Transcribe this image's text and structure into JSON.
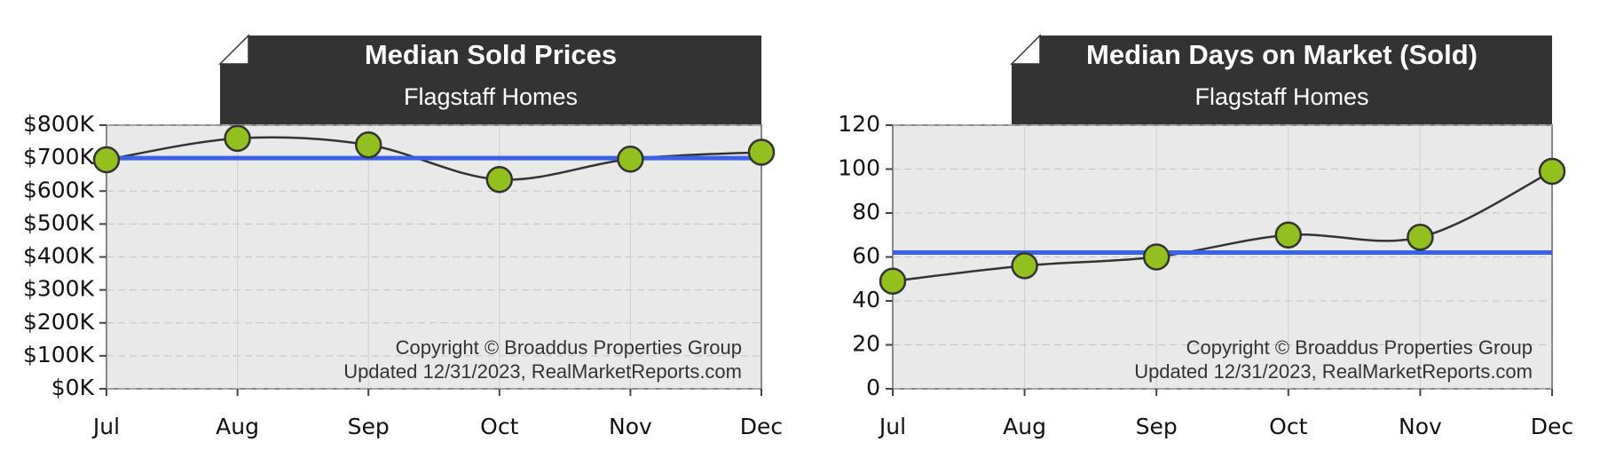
{
  "chart_data": [
    {
      "type": "line",
      "title": "Median Sold Prices",
      "subtitle": "Flagstaff Homes",
      "categories": [
        "Jul",
        "Aug",
        "Sep",
        "Oct",
        "Nov",
        "Dec"
      ],
      "values": [
        695000,
        760000,
        740000,
        635000,
        697000,
        718000
      ],
      "color": "#333333",
      "marker_color": "#92c01f",
      "average": 700000,
      "average_color": "#3a62e8",
      "ylim": [
        0,
        800000
      ],
      "yticks": [
        {
          "value": 0,
          "label": "$0K"
        },
        {
          "value": 100000,
          "label": "$100K"
        },
        {
          "value": 200000,
          "label": "$200K"
        },
        {
          "value": 300000,
          "label": "$300K"
        },
        {
          "value": 400000,
          "label": "$400K"
        },
        {
          "value": 500000,
          "label": "$500K"
        },
        {
          "value": 600000,
          "label": "$600K"
        },
        {
          "value": 700000,
          "label": "$700K"
        },
        {
          "value": 800000,
          "label": "$800K"
        }
      ],
      "grid": true,
      "annotations": [
        "Copyright © Broaddus Properties Group",
        "Updated 12/31/2023, RealMarketReports.com"
      ]
    },
    {
      "type": "line",
      "title": "Median Days on Market (Sold)",
      "subtitle": "Flagstaff Homes",
      "categories": [
        "Jul",
        "Aug",
        "Sep",
        "Oct",
        "Nov",
        "Dec"
      ],
      "values": [
        49,
        56,
        60,
        70,
        69,
        99
      ],
      "color": "#333333",
      "marker_color": "#92c01f",
      "average": 62,
      "average_color": "#3a62e8",
      "ylim": [
        0,
        120
      ],
      "yticks": [
        0,
        20,
        40,
        60,
        80,
        100,
        120
      ],
      "grid": true,
      "annotations": [
        "Copyright © Broaddus Properties Group",
        "Updated 12/31/2023, RealMarketReports.com"
      ]
    }
  ]
}
